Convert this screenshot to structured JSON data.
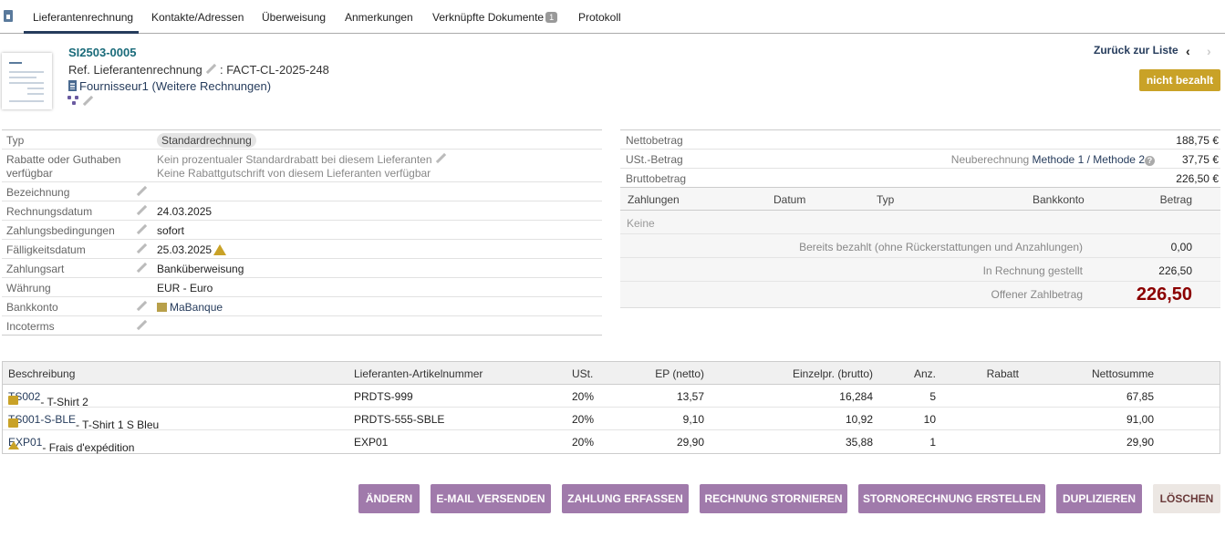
{
  "tabs": [
    {
      "label": "Lieferantenrechnung"
    },
    {
      "label": "Kontakte/Adressen"
    },
    {
      "label": "Überweisung"
    },
    {
      "label": "Anmerkungen"
    },
    {
      "label": "Verknüpfte Dokumente",
      "badge": "1"
    },
    {
      "label": "Protokoll"
    }
  ],
  "header": {
    "ref": "SI2503-0005",
    "supplier_ref_label": "Ref. Lieferantenrechnung",
    "supplier_ref_value": ": FACT-CL-2025-248",
    "supplier_name": "Fournisseur1",
    "more_invoices": "(Weitere Rechnungen)",
    "back_link": "Zurück zur Liste",
    "status": "nicht bezahlt"
  },
  "fields": [
    {
      "label": "Typ",
      "value": "Standardrechnung"
    },
    {
      "label": "Rabatte oder Guthaben verfügbar",
      "value1": "Kein prozentualer Standardrabatt bei diesem Lieferanten",
      "value2": "Keine Rabattgutschrift von diesem Lieferanten verfügbar"
    },
    {
      "label": "Bezeichnung",
      "value": ""
    },
    {
      "label": "Rechnungsdatum",
      "value": "24.03.2025"
    },
    {
      "label": "Zahlungsbedingungen",
      "value": "sofort"
    },
    {
      "label": "Fälligkeitsdatum",
      "value": "25.03.2025"
    },
    {
      "label": "Zahlungsart",
      "value": "Banküberweisung"
    },
    {
      "label": "Währung",
      "value": "EUR - Euro"
    },
    {
      "label": "Bankkonto",
      "value": "MaBanque"
    },
    {
      "label": "Incoterms",
      "value": ""
    }
  ],
  "amounts": {
    "net_label": "Nettobetrag",
    "net_value": "188,75 €",
    "vat_label": "USt.-Betrag",
    "vat_recalc": "Neuberechnung",
    "method1": "Methode 1",
    "slash": "/",
    "method2": "Methode 2",
    "vat_value": "37,75 €",
    "gross_label": "Bruttobetrag",
    "gross_value": "226,50 €"
  },
  "payments": {
    "headers": {
      "payments": "Zahlungen",
      "date": "Datum",
      "type": "Typ",
      "bank": "Bankkonto",
      "amount": "Betrag"
    },
    "none": "Keine",
    "already_paid_label": "Bereits bezahlt (ohne Rückerstattungen und Anzahlungen)",
    "already_paid_value": "0,00",
    "invoiced_label": "In Rechnung gestellt",
    "invoiced_value": "226,50",
    "open_label": "Offener Zahlbetrag",
    "open_value": "226,50"
  },
  "lines": {
    "headers": {
      "desc": "Beschreibung",
      "supplier_ref": "Lieferanten-Artikelnummer",
      "vat": "USt.",
      "unit_net": "EP (netto)",
      "unit_gross": "Einzelpr. (brutto)",
      "qty": "Anz.",
      "discount": "Rabatt",
      "total": "Nettosumme"
    },
    "rows": [
      {
        "code": "TS002",
        "label": " - T-Shirt 2",
        "supplier_ref": "PRDTS-999",
        "vat": "20%",
        "unit_net": "13,57",
        "unit_gross": "16,284",
        "qty": "5",
        "total": "67,85",
        "icon": "box-icon"
      },
      {
        "code": "TS001-S-BLE",
        "label": " - T-Shirt 1 S Bleu",
        "supplier_ref": "PRDTS-555-SBLE",
        "vat": "20%",
        "unit_net": "9,10",
        "unit_gross": "10,92",
        "qty": "10",
        "total": "91,00",
        "icon": "box-icon"
      },
      {
        "code": "EXP01",
        "label": " - Frais d'expédition",
        "supplier_ref": "EXP01",
        "vat": "20%",
        "unit_net": "29,90",
        "unit_gross": "35,88",
        "qty": "1",
        "total": "29,90",
        "icon": "service-icon"
      }
    ]
  },
  "buttons": {
    "modify": "ÄNDERN",
    "send_email": "E-MAIL VERSENDEN",
    "enter_payment": "ZAHLUNG ERFASSEN",
    "cancel_invoice": "RECHNUNG STORNIEREN",
    "create_credit": "STORNORECHNUNG ERSTELLEN",
    "duplicate": "DUPLIZIEREN",
    "delete": "LÖSCHEN"
  },
  "colors": {
    "accent": "#263c5c",
    "button": "#a07aab",
    "status": "#c9a227",
    "open_amount": "#8b0000"
  }
}
